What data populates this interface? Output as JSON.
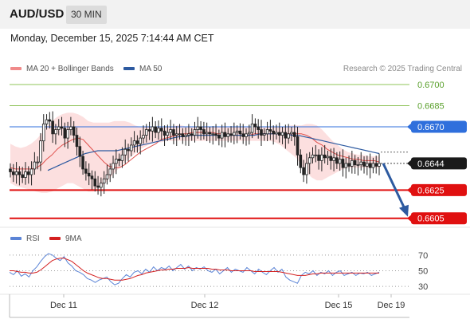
{
  "header": {
    "symbol": "AUD/USD",
    "timeframe": "30 MIN",
    "datetime": "Monday, December 15, 2025 7:14:44 AM CET",
    "credit": "Research © 2025 Trading Central"
  },
  "colors": {
    "ma20": "#e0514d",
    "bollinger_fill": "#fcd9d9",
    "ma50": "#2d5aa0",
    "resistance_green": "#8fc45a",
    "pivot_blue": "#2f6fdc",
    "support_red": "#e01010",
    "candle": "#222222",
    "arrow": "#2d5aa0",
    "rsi": "#5b84d6",
    "rsi_ma": "#d42020"
  },
  "chart_data": [
    {
      "type": "candlestick",
      "legend": [
        {
          "label": "MA 20 + Bollinger Bands",
          "color": "#f08a8a"
        },
        {
          "label": "MA 50",
          "color": "#2d5aa0"
        }
      ],
      "ylim": [
        0.6602,
        0.6704
      ],
      "x_tick_labels": [
        "Dec 11",
        "Dec 12",
        "Dec 15",
        "Dec 19"
      ],
      "levels": [
        {
          "label": "0.6700",
          "value": 0.67,
          "kind": "resistance"
        },
        {
          "label": "0.6685",
          "value": 0.6685,
          "kind": "resistance"
        },
        {
          "label": "0.6670",
          "value": 0.667,
          "kind": "pivot"
        },
        {
          "label": "0.6644",
          "value": 0.6644,
          "kind": "last"
        },
        {
          "label": "0.6625",
          "value": 0.6625,
          "kind": "support"
        },
        {
          "label": "0.6605",
          "value": 0.6605,
          "kind": "support"
        }
      ],
      "close": [
        0.6638,
        0.6636,
        0.6638,
        0.6636,
        0.6634,
        0.6638,
        0.6636,
        0.664,
        0.6645,
        0.6645,
        0.666,
        0.6672,
        0.6675,
        0.6674,
        0.6665,
        0.6668,
        0.667,
        0.6669,
        0.6662,
        0.6668,
        0.667,
        0.6664,
        0.6656,
        0.6649,
        0.664,
        0.6637,
        0.6635,
        0.6633,
        0.6628,
        0.6627,
        0.663,
        0.6633,
        0.6636,
        0.664,
        0.6644,
        0.6647,
        0.6646,
        0.665,
        0.6654,
        0.6653,
        0.6657,
        0.666,
        0.6658,
        0.6662,
        0.6664,
        0.6668,
        0.6667,
        0.667,
        0.6666,
        0.6669,
        0.6667,
        0.6664,
        0.6666,
        0.6668,
        0.6664,
        0.6665,
        0.6665,
        0.6663,
        0.6664,
        0.6665,
        0.6664,
        0.6668,
        0.667,
        0.6668,
        0.6665,
        0.6666,
        0.6665,
        0.6665,
        0.6664,
        0.6662,
        0.6666,
        0.6663,
        0.6665,
        0.6664,
        0.6666,
        0.6667,
        0.6665,
        0.6663,
        0.6665,
        0.6666,
        0.6672,
        0.667,
        0.6668,
        0.6664,
        0.6665,
        0.6668,
        0.6667,
        0.6665,
        0.6666,
        0.6664,
        0.6666,
        0.6662,
        0.6665,
        0.6666,
        0.6663,
        0.665,
        0.6641,
        0.6636,
        0.6644,
        0.6648,
        0.665,
        0.665,
        0.6646,
        0.665,
        0.6648,
        0.6649,
        0.6646,
        0.6648,
        0.6644,
        0.6647,
        0.6641,
        0.6644,
        0.6642,
        0.6646,
        0.6643,
        0.6643,
        0.6645,
        0.6642,
        0.6644,
        0.6641,
        0.6644,
        0.6642,
        0.6644
      ],
      "ma20": [
        0.6641,
        0.664,
        0.664,
        0.664,
        0.664,
        0.6641,
        0.6643,
        0.6647,
        0.665,
        0.6654,
        0.6657,
        0.6659,
        0.6661,
        0.6662,
        0.6661,
        0.6657,
        0.6653,
        0.6649,
        0.6645,
        0.6642,
        0.6641,
        0.6641,
        0.6643,
        0.6646,
        0.6649,
        0.6652,
        0.6654,
        0.6656,
        0.6658,
        0.6661,
        0.6662,
        0.6663,
        0.6664,
        0.6665,
        0.6665,
        0.6666,
        0.6666,
        0.6666,
        0.6666,
        0.6666,
        0.6665,
        0.6665,
        0.6664,
        0.6664,
        0.6664,
        0.6664,
        0.6664,
        0.6665,
        0.6665,
        0.6665,
        0.6665,
        0.6665,
        0.6665,
        0.6665,
        0.6665,
        0.6665,
        0.6665,
        0.6664,
        0.6662,
        0.6659,
        0.6657,
        0.6654,
        0.6652,
        0.665,
        0.6649,
        0.6648,
        0.6647,
        0.6647,
        0.6646,
        0.6646,
        0.6646,
        0.6645
      ],
      "ma50": [
        0.6639,
        0.6641,
        0.6643,
        0.6645,
        0.6647,
        0.6649,
        0.6651,
        0.6652,
        0.6653,
        0.6653,
        0.6653,
        0.6653,
        0.6654,
        0.6655,
        0.6656,
        0.6657,
        0.6658,
        0.6659,
        0.666,
        0.6661,
        0.6662,
        0.6663,
        0.6663,
        0.6664,
        0.6664,
        0.6664,
        0.6664,
        0.6664,
        0.6664,
        0.6664,
        0.6664,
        0.6664,
        0.6664,
        0.6664,
        0.6665,
        0.6665,
        0.6665,
        0.6665,
        0.6665,
        0.6664,
        0.6664,
        0.6663,
        0.6662,
        0.6661,
        0.666,
        0.6659,
        0.6658,
        0.6657,
        0.6656,
        0.6655,
        0.6654,
        0.6653,
        0.6652,
        0.6651
      ],
      "bb_upper": [
        0.6658,
        0.6656,
        0.6655,
        0.6656,
        0.6658,
        0.6661,
        0.6665,
        0.667,
        0.6674,
        0.6677,
        0.6679,
        0.668,
        0.668,
        0.6679,
        0.6677,
        0.6674,
        0.6673,
        0.6673,
        0.6673,
        0.6673,
        0.6674,
        0.6674,
        0.6674,
        0.6673,
        0.6671,
        0.667,
        0.667,
        0.667,
        0.667,
        0.667,
        0.667,
        0.667,
        0.6671,
        0.6671,
        0.667,
        0.667,
        0.667,
        0.667,
        0.667,
        0.667,
        0.667,
        0.667,
        0.667,
        0.667,
        0.667,
        0.667,
        0.667,
        0.667,
        0.667,
        0.667,
        0.667,
        0.667,
        0.667,
        0.667,
        0.6671,
        0.6671,
        0.6671,
        0.6672,
        0.6672,
        0.6671,
        0.6668,
        0.6664,
        0.666,
        0.6657,
        0.6654,
        0.6652,
        0.6651,
        0.665,
        0.665,
        0.6649,
        0.6649,
        0.6649
      ],
      "bb_lower": [
        0.663,
        0.6628,
        0.6627,
        0.6626,
        0.6625,
        0.6624,
        0.6623,
        0.6623,
        0.6624,
        0.6626,
        0.6628,
        0.663,
        0.663,
        0.6628,
        0.6626,
        0.6624,
        0.6624,
        0.6626,
        0.6629,
        0.6633,
        0.6637,
        0.6641,
        0.6645,
        0.6648,
        0.6651,
        0.6654,
        0.6656,
        0.6658,
        0.6659,
        0.6659,
        0.666,
        0.666,
        0.666,
        0.666,
        0.666,
        0.666,
        0.666,
        0.666,
        0.666,
        0.666,
        0.666,
        0.666,
        0.666,
        0.666,
        0.666,
        0.666,
        0.666,
        0.666,
        0.666,
        0.666,
        0.666,
        0.6659,
        0.6657,
        0.6654,
        0.6651,
        0.6648,
        0.6643,
        0.6638,
        0.6634,
        0.6632,
        0.6632,
        0.6634,
        0.6636,
        0.6638,
        0.664,
        0.6641,
        0.6641,
        0.6641,
        0.6641,
        0.6641,
        0.6641,
        0.6641
      ],
      "forecast_arrow": {
        "from": 0.6644,
        "to": 0.6605
      }
    },
    {
      "type": "line",
      "legend": [
        {
          "label": "RSI",
          "color": "#5b84d6"
        },
        {
          "label": "9MA",
          "color": "#d42020"
        }
      ],
      "ylim": [
        25,
        78
      ],
      "y_ticks": [
        "70",
        "50",
        "30"
      ],
      "rsi": [
        48,
        45,
        50,
        43,
        46,
        42,
        50,
        55,
        62,
        68,
        72,
        70,
        66,
        63,
        68,
        60,
        56,
        50,
        48,
        45,
        40,
        38,
        35,
        38,
        40,
        42,
        36,
        32,
        34,
        40,
        45,
        42,
        48,
        50,
        46,
        52,
        48,
        55,
        50,
        54,
        52,
        56,
        50,
        54,
        58,
        52,
        56,
        50,
        54,
        52,
        55,
        50,
        48,
        52,
        46,
        50,
        54,
        48,
        52,
        50,
        48,
        54,
        50,
        46,
        52,
        48,
        45,
        50,
        54,
        48,
        52,
        42,
        38,
        36,
        34,
        44,
        48,
        46,
        50,
        44,
        48,
        46,
        50,
        44,
        48,
        50,
        44,
        46,
        48,
        44,
        47,
        46,
        48,
        44,
        46,
        48
      ],
      "rsi_ma": [
        50,
        50,
        49,
        48,
        48,
        47,
        47,
        48,
        51,
        55,
        59,
        63,
        65,
        66,
        66,
        64,
        62,
        58,
        54,
        50,
        47,
        45,
        43,
        41,
        40,
        40,
        39,
        38,
        38,
        38,
        39,
        40,
        42,
        44,
        45,
        47,
        48,
        49,
        50,
        51,
        51,
        52,
        52,
        53,
        53,
        53,
        54,
        53,
        53,
        53,
        53,
        53,
        52,
        52,
        51,
        51,
        51,
        50,
        50,
        50,
        50,
        50,
        50,
        49,
        49,
        49,
        49,
        49,
        49,
        49,
        48,
        47,
        46,
        45,
        44,
        44,
        44,
        45,
        46,
        46,
        47,
        47,
        47,
        47,
        47,
        47,
        47,
        47,
        47,
        47,
        47,
        47,
        47,
        47,
        47,
        47
      ]
    }
  ]
}
